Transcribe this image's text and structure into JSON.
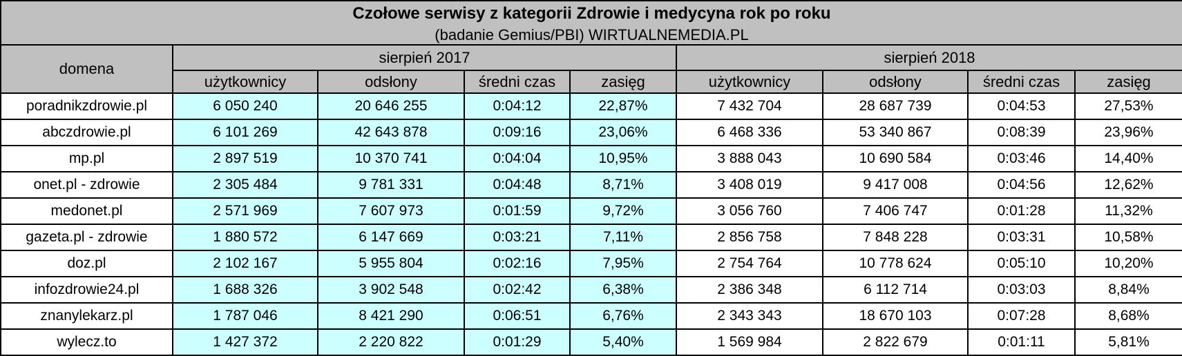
{
  "table": {
    "title": "Czołowe serwisy z kategorii Zdrowie i medycyna rok po roku",
    "subtitle": "(badanie Gemius/PBI) WIRTUALNEMEDIA.PL",
    "domain_header": "domena",
    "period_headers": [
      "sierpień 2017",
      "sierpień 2018"
    ],
    "metric_headers": [
      "użytkownicy",
      "odsłony",
      "średni czas",
      "zasięg"
    ],
    "rows": [
      {
        "domena": "poradnikzdrowie.pl",
        "cells": [
          "6 050 240",
          "20 646 255",
          "0:04:12",
          "22,87%",
          "7 432 704",
          "28 687 739",
          "0:04:53",
          "27,53%"
        ]
      },
      {
        "domena": "abczdrowie.pl",
        "cells": [
          "6 101 269",
          "42 643 878",
          "0:09:16",
          "23,06%",
          "6 468 336",
          "53 340 867",
          "0:08:39",
          "23,96%"
        ]
      },
      {
        "domena": "mp.pl",
        "cells": [
          "2 897 519",
          "10 370 741",
          "0:04:04",
          "10,95%",
          "3 888 043",
          "10 690 584",
          "0:03:46",
          "14,40%"
        ]
      },
      {
        "domena": "onet.pl - zdrowie",
        "cells": [
          "2 305 484",
          "9 781 331",
          "0:04:48",
          "8,71%",
          "3 408 019",
          "9 417 008",
          "0:04:56",
          "12,62%"
        ]
      },
      {
        "domena": "medonet.pl",
        "cells": [
          "2 571 969",
          "7 607 973",
          "0:01:59",
          "9,72%",
          "3 056 760",
          "7 406 747",
          "0:01:28",
          "11,32%"
        ]
      },
      {
        "domena": "gazeta.pl - zdrowie",
        "cells": [
          "1 880 572",
          "6 147 669",
          "0:03:21",
          "7,11%",
          "2 856 758",
          "7 848 228",
          "0:03:31",
          "10,58%"
        ]
      },
      {
        "domena": "doz.pl",
        "cells": [
          "2 102 167",
          "5 955 804",
          "0:02:16",
          "7,95%",
          "2 754 764",
          "10 778 624",
          "0:05:10",
          "10,20%"
        ]
      },
      {
        "domena": "infozdrowie24.pl",
        "cells": [
          "1 688 326",
          "3 902 548",
          "0:02:42",
          "6,38%",
          "2 386 348",
          "6 112 714",
          "0:03:03",
          "8,84%"
        ]
      },
      {
        "domena": "znanylekarz.pl",
        "cells": [
          "1 787 046",
          "8 421 290",
          "0:06:51",
          "6,76%",
          "2 343 343",
          "18 670 103",
          "0:07:28",
          "8,68%"
        ]
      },
      {
        "domena": "wylecz.to",
        "cells": [
          "1 427 372",
          "2 220 822",
          "0:01:29",
          "5,40%",
          "1 569 984",
          "2 822 679",
          "0:01:11",
          "5,81%"
        ]
      }
    ]
  },
  "colors": {
    "header_background": "#c0c0c0",
    "year2017_background": "#ccffff",
    "year2018_background": "#ffffff",
    "border": "#000000",
    "text": "#000000"
  },
  "chart_data": {
    "type": "table",
    "title": "Czołowe serwisy z kategorii Zdrowie i medycyna rok po roku",
    "subtitle": "(badanie Gemius/PBI) WIRTUALNEMEDIA.PL",
    "categories": [
      "poradnikzdrowie.pl",
      "abczdrowie.pl",
      "mp.pl",
      "onet.pl - zdrowie",
      "medonet.pl",
      "gazeta.pl - zdrowie",
      "doz.pl",
      "infozdrowie24.pl",
      "znanylekarz.pl",
      "wylecz.to"
    ],
    "series": [
      {
        "name": "sierpień 2017 użytkownicy",
        "values": [
          6050240,
          6101269,
          2897519,
          2305484,
          2571969,
          1880572,
          2102167,
          1688326,
          1787046,
          1427372
        ]
      },
      {
        "name": "sierpień 2017 odsłony",
        "values": [
          20646255,
          42643878,
          10370741,
          9781331,
          7607973,
          6147669,
          5955804,
          3902548,
          8421290,
          2220822
        ]
      },
      {
        "name": "sierpień 2017 średni czas",
        "values": [
          "0:04:12",
          "0:09:16",
          "0:04:04",
          "0:04:48",
          "0:01:59",
          "0:03:21",
          "0:02:16",
          "0:02:42",
          "0:06:51",
          "0:01:29"
        ]
      },
      {
        "name": "sierpień 2017 zasięg (%)",
        "values": [
          22.87,
          23.06,
          10.95,
          8.71,
          9.72,
          7.11,
          7.95,
          6.38,
          6.76,
          5.4
        ]
      },
      {
        "name": "sierpień 2018 użytkownicy",
        "values": [
          7432704,
          6468336,
          3888043,
          3408019,
          3056760,
          2856758,
          2754764,
          2386348,
          2343343,
          1569984
        ]
      },
      {
        "name": "sierpień 2018 odsłony",
        "values": [
          28687739,
          53340867,
          10690584,
          9417008,
          7406747,
          7848228,
          10778624,
          6112714,
          18670103,
          2822679
        ]
      },
      {
        "name": "sierpień 2018 średni czas",
        "values": [
          "0:04:53",
          "0:08:39",
          "0:03:46",
          "0:04:56",
          "0:01:28",
          "0:03:31",
          "0:05:10",
          "0:03:03",
          "0:07:28",
          "0:01:11"
        ]
      },
      {
        "name": "sierpień 2018 zasięg (%)",
        "values": [
          27.53,
          23.96,
          14.4,
          12.62,
          11.32,
          10.58,
          10.2,
          8.84,
          8.68,
          5.81
        ]
      }
    ]
  }
}
